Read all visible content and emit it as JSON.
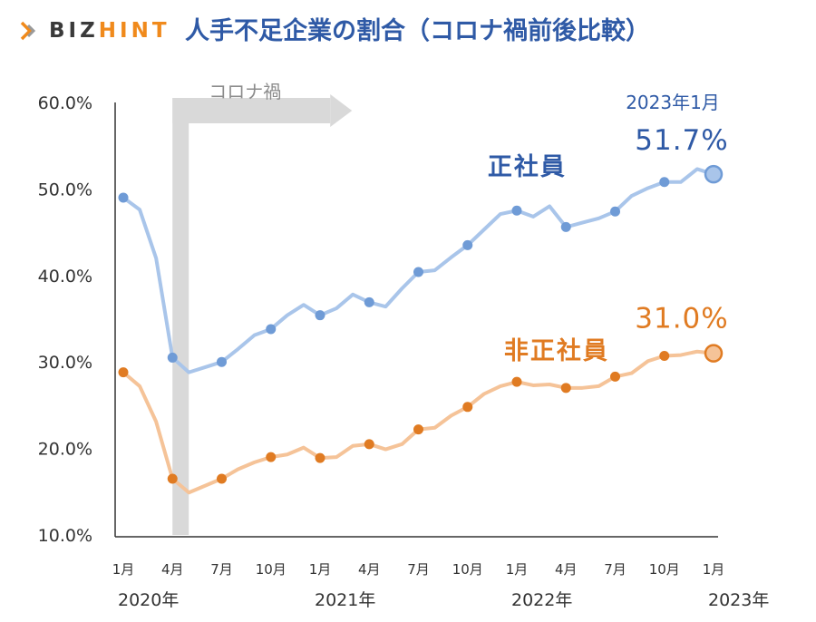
{
  "header": {
    "logo_text_a": "BIZ",
    "logo_text_b": "HINT",
    "title": "人手不足企業の割合（コロナ禍前後比較）"
  },
  "colors": {
    "regular": "#6f9bd6",
    "regular_light": "#a9c5ea",
    "regular_label": "#2f5aa6",
    "nonregular": "#e07b22",
    "nonregular_light": "#f5c398",
    "nonregular_label": "#e07b22",
    "corona_band": "#d9d9d9",
    "axis": "#333333"
  },
  "chart_data": {
    "type": "line",
    "title": "人手不足企業の割合（コロナ禍前後比較）",
    "ylim": [
      10,
      60
    ],
    "yticks": [
      "60.0%",
      "50.0%",
      "40.0%",
      "30.0%",
      "20.0%",
      "10.0%"
    ],
    "x_tick_labels": [
      "1月",
      "4月",
      "7月",
      "10月",
      "1月",
      "4月",
      "7月",
      "10月",
      "1月",
      "4月",
      "7月",
      "10月",
      "1月"
    ],
    "year_labels": [
      "2020年",
      "2021年",
      "2022年",
      "2023年"
    ],
    "x": [
      "2020-01",
      "2020-02",
      "2020-03",
      "2020-04",
      "2020-05",
      "2020-06",
      "2020-07",
      "2020-08",
      "2020-09",
      "2020-10",
      "2020-11",
      "2020-12",
      "2021-01",
      "2021-02",
      "2021-03",
      "2021-04",
      "2021-05",
      "2021-06",
      "2021-07",
      "2021-08",
      "2021-09",
      "2021-10",
      "2021-11",
      "2021-12",
      "2022-01",
      "2022-02",
      "2022-03",
      "2022-04",
      "2022-05",
      "2022-06",
      "2022-07",
      "2022-08",
      "2022-09",
      "2022-10",
      "2022-11",
      "2022-12",
      "2023-01"
    ],
    "series": [
      {
        "name": "正社員",
        "values": [
          49.0,
          47.6,
          42.0,
          30.5,
          28.8,
          29.4,
          30.0,
          31.5,
          33.1,
          33.8,
          35.4,
          36.6,
          35.4,
          36.2,
          37.8,
          36.9,
          36.4,
          38.5,
          40.4,
          40.6,
          42.1,
          43.5,
          45.3,
          47.1,
          47.5,
          46.8,
          48.0,
          45.6,
          46.1,
          46.6,
          47.4,
          49.2,
          50.1,
          50.8,
          50.8,
          52.3,
          51.7
        ],
        "marker_months": [
          "2020-01",
          "2020-04",
          "2020-07",
          "2020-10",
          "2021-01",
          "2021-04",
          "2021-07",
          "2021-10",
          "2022-01",
          "2022-04",
          "2022-07",
          "2022-10"
        ]
      },
      {
        "name": "非正社員",
        "values": [
          28.8,
          27.2,
          23.1,
          16.5,
          14.9,
          15.7,
          16.5,
          17.6,
          18.4,
          19.0,
          19.3,
          20.1,
          18.9,
          19.0,
          20.3,
          20.5,
          19.9,
          20.5,
          22.2,
          22.4,
          23.8,
          24.8,
          26.3,
          27.2,
          27.7,
          27.3,
          27.4,
          27.0,
          27.0,
          27.2,
          28.3,
          28.7,
          30.1,
          30.7,
          30.8,
          31.2,
          31.0
        ],
        "marker_months": [
          "2020-01",
          "2020-04",
          "2020-07",
          "2020-10",
          "2021-01",
          "2021-04",
          "2021-07",
          "2021-10",
          "2022-01",
          "2022-04",
          "2022-07",
          "2022-10"
        ]
      }
    ],
    "annotations": {
      "corona_label": "コロナ禍",
      "corona_start": "2020-04",
      "latest_date": "2023年1月",
      "latest_regular": "51.7%",
      "latest_nonregular": "31.0%"
    },
    "grid": false
  }
}
